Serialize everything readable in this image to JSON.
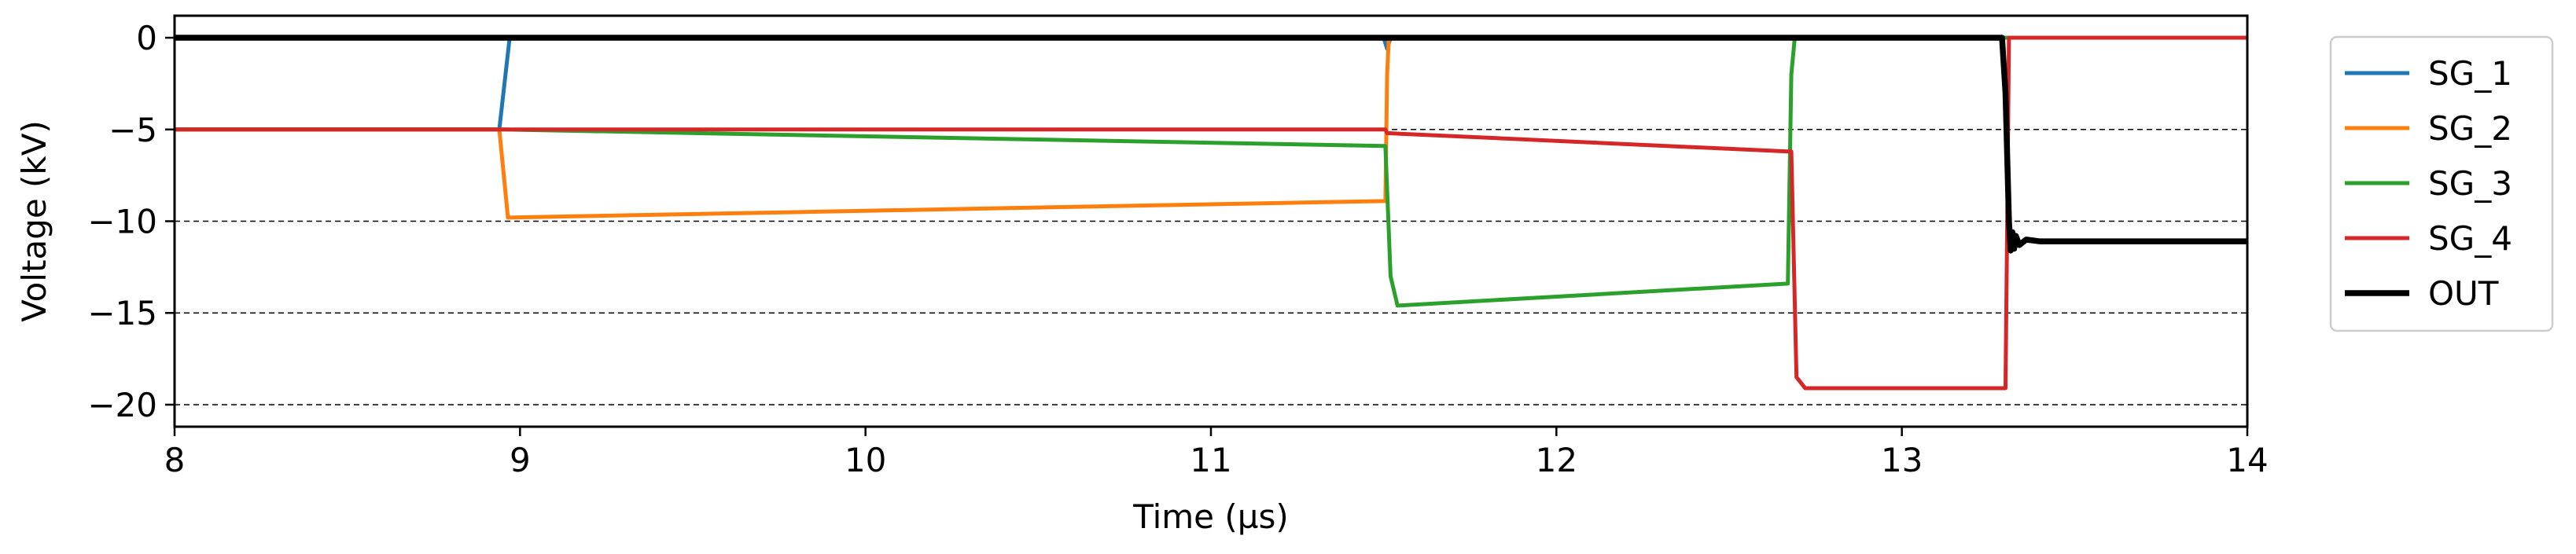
{
  "chart_data": {
    "type": "line",
    "title": "",
    "xlabel": "Time (µs)",
    "ylabel": "Voltage (kV)",
    "xlim": [
      8,
      14
    ],
    "ylim": [
      -21.2,
      1.2
    ],
    "xticks": [
      8,
      9,
      10,
      11,
      12,
      13,
      14
    ],
    "yticks": [
      0,
      -5,
      -10,
      -15,
      -20
    ],
    "xtick_labels": [
      "8",
      "9",
      "10",
      "11",
      "12",
      "13",
      "14"
    ],
    "ytick_labels": [
      "0",
      "−5",
      "−10",
      "−15",
      "−20"
    ],
    "grid": "horizontal dashed at -5, -10, -15, -20",
    "legend_position": "outside-right-top",
    "series": [
      {
        "name": "SG_1",
        "color": "#1f77b4",
        "points": [
          [
            8.0,
            -5.0
          ],
          [
            8.94,
            -5.0
          ],
          [
            8.955,
            -2.5
          ],
          [
            8.97,
            0.0
          ],
          [
            11.5,
            0.0
          ],
          [
            11.51,
            -0.6
          ],
          [
            11.52,
            0.0
          ],
          [
            14.0,
            0.0
          ]
        ]
      },
      {
        "name": "SG_2",
        "color": "#ff7f0e",
        "points": [
          [
            8.0,
            -5.0
          ],
          [
            8.94,
            -5.0
          ],
          [
            8.965,
            -9.8
          ],
          [
            11.5,
            -8.9
          ],
          [
            11.505,
            -8.9
          ],
          [
            11.51,
            -2.0
          ],
          [
            11.515,
            0.0
          ],
          [
            14.0,
            0.0
          ]
        ]
      },
      {
        "name": "SG_3",
        "color": "#2ca02c",
        "points": [
          [
            8.0,
            -5.0
          ],
          [
            8.95,
            -5.0
          ],
          [
            11.5,
            -5.9
          ],
          [
            11.505,
            -5.9
          ],
          [
            11.52,
            -13.0
          ],
          [
            11.54,
            -14.6
          ],
          [
            12.67,
            -13.4
          ],
          [
            12.68,
            -2.0
          ],
          [
            12.69,
            0.0
          ],
          [
            14.0,
            0.0
          ]
        ]
      },
      {
        "name": "SG_4",
        "color": "#d62728",
        "points": [
          [
            8.0,
            -5.0
          ],
          [
            11.505,
            -5.0
          ],
          [
            11.51,
            -5.2
          ],
          [
            12.67,
            -6.2
          ],
          [
            12.68,
            -6.2
          ],
          [
            12.695,
            -18.5
          ],
          [
            12.72,
            -19.1
          ],
          [
            13.3,
            -19.1
          ],
          [
            13.305,
            -10.0
          ],
          [
            13.31,
            0.0
          ],
          [
            14.0,
            0.0
          ]
        ]
      },
      {
        "name": "OUT",
        "color": "#000000",
        "points": [
          [
            8.0,
            0.0
          ],
          [
            13.29,
            0.0
          ],
          [
            13.3,
            -3.0
          ],
          [
            13.31,
            -10.0
          ],
          [
            13.315,
            -11.6
          ],
          [
            13.32,
            -10.6
          ],
          [
            13.325,
            -11.5
          ],
          [
            13.33,
            -10.8
          ],
          [
            13.34,
            -11.3
          ],
          [
            13.36,
            -11.0
          ],
          [
            13.4,
            -11.1
          ],
          [
            14.0,
            -11.1
          ]
        ]
      }
    ]
  }
}
